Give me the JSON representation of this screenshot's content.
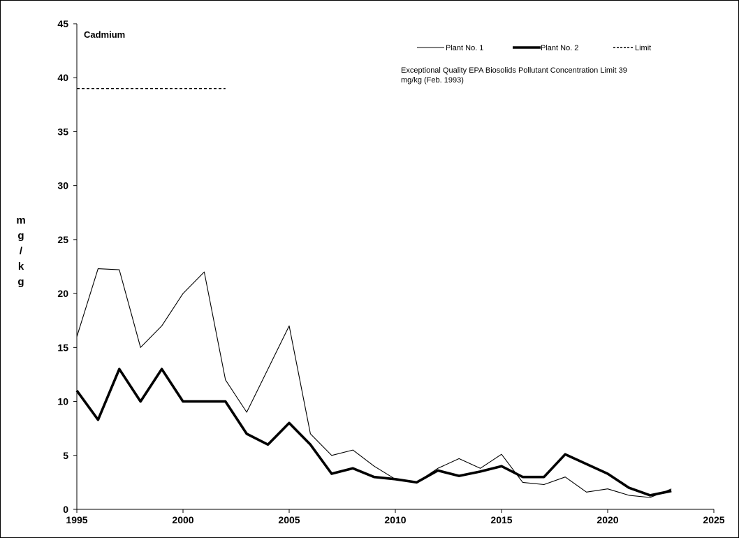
{
  "chart_data": {
    "type": "line",
    "title": "Cadmium",
    "ylabel_letters": [
      "m",
      "g",
      "/",
      "k",
      "g"
    ],
    "xlim": [
      1995,
      2025
    ],
    "ylim": [
      0,
      45
    ],
    "x_ticks": [
      1995,
      2000,
      2005,
      2010,
      2015,
      2020,
      2025
    ],
    "y_ticks": [
      0,
      5,
      10,
      15,
      20,
      25,
      30,
      35,
      40,
      45
    ],
    "grid": false,
    "legend_position": "top-right",
    "annotation": [
      "Exceptional Quality EPA Biosolids Pollutant Concentration Limit 39",
      "mg/kg  (Feb. 1993)"
    ],
    "series": [
      {
        "name": "Plant No. 1",
        "style": "thin",
        "x": [
          1995,
          1996,
          1997,
          1998,
          1999,
          2000,
          2001,
          2002,
          2003,
          2004,
          2005,
          2006,
          2007,
          2008,
          2009,
          2010,
          2011,
          2012,
          2013,
          2014,
          2015,
          2016,
          2017,
          2018,
          2019,
          2020,
          2021,
          2022,
          2023
        ],
        "values": [
          16,
          22.3,
          22.2,
          15,
          17,
          20,
          22,
          12,
          9,
          13,
          17,
          7,
          5,
          5.5,
          4,
          2.8,
          2.5,
          3.8,
          4.7,
          3.8,
          5.1,
          2.5,
          2.3,
          3,
          1.6,
          1.9,
          1.3,
          1.1,
          1.9
        ]
      },
      {
        "name": "Plant No. 2",
        "style": "thick",
        "x": [
          1995,
          1996,
          1997,
          1998,
          1999,
          2000,
          2001,
          2002,
          2003,
          2004,
          2005,
          2006,
          2007,
          2008,
          2009,
          2010,
          2011,
          2012,
          2013,
          2014,
          2015,
          2016,
          2017,
          2018,
          2019,
          2020,
          2021,
          2022,
          2023
        ],
        "values": [
          11,
          8.3,
          13,
          10,
          13,
          10,
          10,
          10,
          7,
          6,
          8,
          6,
          3.3,
          3.8,
          3,
          2.8,
          2.5,
          3.6,
          3.1,
          3.5,
          4,
          3,
          3,
          5.1,
          4.2,
          3.3,
          2,
          1.3,
          1.7
        ]
      },
      {
        "name": "Limit",
        "style": "dashed",
        "x": [
          1995,
          2002
        ],
        "values": [
          39,
          39
        ]
      }
    ]
  }
}
